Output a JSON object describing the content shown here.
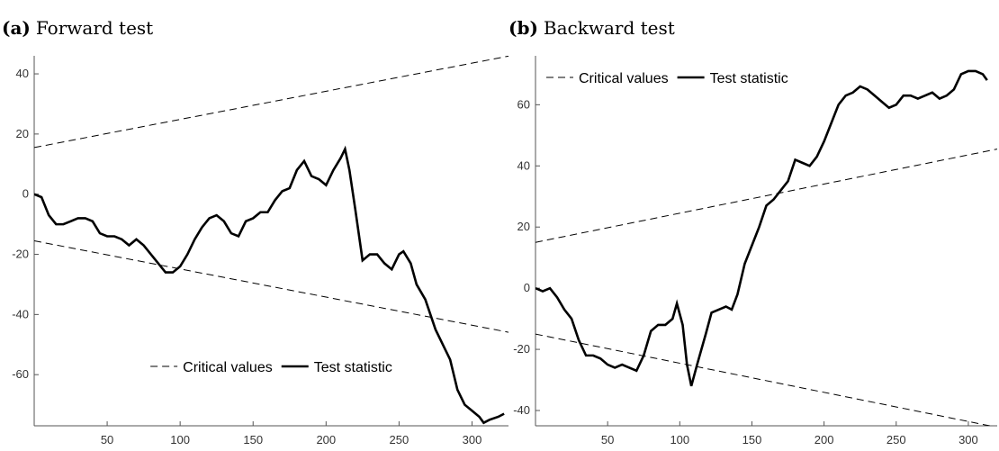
{
  "chart_data": [
    {
      "type": "line",
      "panel_label": "(a)",
      "title": "Forward test",
      "xlim": [
        0,
        325
      ],
      "ylim": [
        -77,
        46
      ],
      "xticks": [
        50,
        100,
        150,
        200,
        250,
        300
      ],
      "yticks": [
        -60,
        -40,
        -20,
        0,
        20,
        40
      ],
      "legend": "south",
      "series": [
        {
          "name": "Critical values",
          "color": "#000000",
          "dashed": true,
          "x": [
            0,
            325
          ],
          "values": [
            15.5,
            45.9
          ]
        },
        {
          "color": "#000000",
          "dashed": true,
          "x": [
            0,
            325
          ],
          "values": [
            -15.5,
            -45.9
          ]
        },
        {
          "name": "Test statistic",
          "color": "#000000",
          "dashed": false,
          "x": [
            0,
            5,
            10,
            15,
            20,
            25,
            30,
            35,
            40,
            45,
            50,
            55,
            60,
            65,
            70,
            75,
            80,
            85,
            90,
            95,
            100,
            105,
            110,
            115,
            120,
            125,
            130,
            135,
            140,
            145,
            150,
            155,
            160,
            165,
            170,
            175,
            180,
            185,
            190,
            195,
            200,
            205,
            210,
            213,
            216,
            220,
            225,
            230,
            235,
            240,
            245,
            250,
            253,
            258,
            262,
            268,
            275,
            280,
            285,
            290,
            295,
            300,
            305,
            308,
            312,
            318,
            322
          ],
          "values": [
            0,
            -1,
            -7,
            -10,
            -10,
            -9,
            -8,
            -8,
            -9,
            -13,
            -14,
            -14,
            -15,
            -17,
            -15,
            -17,
            -20,
            -23,
            -26,
            -26,
            -24,
            -20,
            -15,
            -11,
            -8,
            -7,
            -9,
            -13,
            -14,
            -9,
            -8,
            -6,
            -6,
            -2,
            1,
            2,
            8,
            11,
            6,
            5,
            3,
            8,
            12,
            15,
            8,
            -5,
            -22,
            -20,
            -20,
            -23,
            -25,
            -20,
            -19,
            -23,
            -30,
            -35,
            -45,
            -50,
            -55,
            -65,
            -70,
            -72,
            -74,
            -76,
            -75,
            -74,
            -73
          ]
        }
      ]
    },
    {
      "type": "line",
      "panel_label": "(b)",
      "title": "Backward test",
      "xlim": [
        0,
        320
      ],
      "ylim": [
        -45,
        76
      ],
      "xticks": [
        50,
        100,
        150,
        200,
        250,
        300
      ],
      "yticks": [
        -40,
        -20,
        0,
        20,
        40,
        60
      ],
      "legend": "northwest",
      "series": [
        {
          "name": "Critical values",
          "color": "#000000",
          "dashed": true,
          "x": [
            0,
            320
          ],
          "values": [
            15,
            45.5
          ]
        },
        {
          "color": "#000000",
          "dashed": true,
          "x": [
            0,
            320
          ],
          "values": [
            -15,
            -45.5
          ]
        },
        {
          "name": "Test statistic",
          "color": "#000000",
          "dashed": false,
          "x": [
            0,
            5,
            10,
            15,
            20,
            25,
            30,
            35,
            40,
            45,
            50,
            55,
            60,
            65,
            70,
            75,
            80,
            85,
            90,
            95,
            98,
            102,
            105,
            108,
            112,
            118,
            122,
            127,
            132,
            136,
            140,
            145,
            150,
            155,
            160,
            165,
            170,
            175,
            180,
            185,
            190,
            195,
            200,
            205,
            210,
            215,
            220,
            225,
            230,
            235,
            240,
            245,
            250,
            255,
            260,
            265,
            270,
            275,
            280,
            285,
            290,
            295,
            300,
            305,
            310,
            313
          ],
          "values": [
            0,
            -1,
            0,
            -3,
            -7,
            -10,
            -17,
            -22,
            -22,
            -23,
            -25,
            -26,
            -25,
            -26,
            -27,
            -22,
            -14,
            -12,
            -12,
            -10,
            -5,
            -12,
            -25,
            -32,
            -25,
            -15,
            -8,
            -7,
            -6,
            -7,
            -2,
            8,
            14,
            20,
            27,
            29,
            32,
            35,
            42,
            41,
            40,
            43,
            48,
            54,
            60,
            63,
            64,
            66,
            65,
            63,
            61,
            59,
            60,
            63,
            63,
            62,
            63,
            64,
            62,
            63,
            65,
            70,
            71,
            71,
            70,
            68
          ]
        }
      ]
    }
  ]
}
